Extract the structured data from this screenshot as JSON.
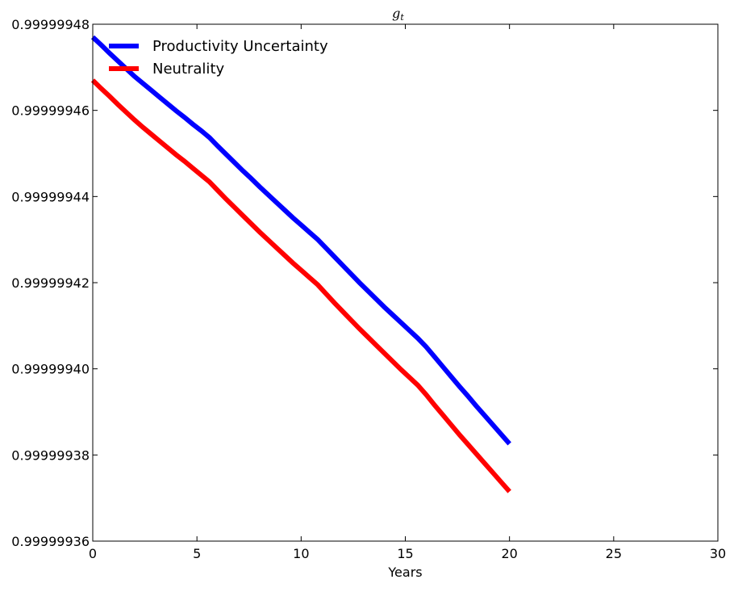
{
  "chart_data": {
    "type": "line",
    "title": "g_t",
    "title_main": "g",
    "title_sub": "t",
    "xlabel": "Years",
    "ylabel": "",
    "xlim": [
      0,
      30
    ],
    "ylim": [
      0.99999936,
      0.99999948
    ],
    "x_ticks": [
      0,
      5,
      10,
      15,
      20,
      25,
      30
    ],
    "x_tick_labels": [
      "0",
      "5",
      "10",
      "15",
      "20",
      "25",
      "30"
    ],
    "y_ticks": [
      0.99999936,
      0.99999938,
      0.9999994,
      0.99999942,
      0.99999944,
      0.99999946,
      0.99999948
    ],
    "y_tick_labels": [
      "0.99999936",
      "0.99999938",
      "0.99999940",
      "0.99999942",
      "0.99999944",
      "0.99999946",
      "0.99999948"
    ],
    "grid": false,
    "legend_position": "top-left",
    "series": [
      {
        "name": "Productivity Uncertainty",
        "color": "#0000ff",
        "x": [
          0,
          0.4,
          0.8,
          1.2,
          1.6,
          2.0,
          2.4,
          2.8,
          3.2,
          3.6,
          4.0,
          4.4,
          4.8,
          5.2,
          5.6,
          6.0,
          6.4,
          6.8,
          7.2,
          7.6,
          8.0,
          8.4,
          8.8,
          9.2,
          9.6,
          10.0,
          10.4,
          10.8,
          11.2,
          11.6,
          12.0,
          12.4,
          12.8,
          13.2,
          13.6,
          14.0,
          14.4,
          14.8,
          15.2,
          15.6,
          16.0,
          16.4,
          16.8,
          17.2,
          17.6,
          18.0,
          18.4,
          18.8,
          19.2,
          19.6,
          20.0
        ],
        "y": [
          0.999999477,
          0.9999994752,
          0.9999994733,
          0.9999994715,
          0.9999994697,
          0.9999994679,
          0.9999994663,
          0.9999994647,
          0.9999994631,
          0.9999994615,
          0.9999994599,
          0.9999994584,
          0.9999994568,
          0.9999994553,
          0.9999994537,
          0.9999994517,
          0.9999994498,
          0.9999994479,
          0.999999446,
          0.9999994442,
          0.9999994423,
          0.9999994405,
          0.9999994387,
          0.9999994369,
          0.9999994351,
          0.9999994334,
          0.9999994317,
          0.99999943,
          0.999999428,
          0.999999426,
          0.999999424,
          0.999999422,
          0.99999942,
          0.9999994181,
          0.9999994162,
          0.9999994143,
          0.9999994125,
          0.9999994107,
          0.9999994089,
          0.9999994071,
          0.9999994051,
          0.9999994028,
          0.9999994005,
          0.9999993982,
          0.9999993959,
          0.9999993937,
          0.9999993914,
          0.9999993892,
          0.999999387,
          0.9999993848,
          0.9999993826
        ]
      },
      {
        "name": "Neutrality",
        "color": "#ff0000",
        "x": [
          0,
          0.4,
          0.8,
          1.2,
          1.6,
          2.0,
          2.4,
          2.8,
          3.2,
          3.6,
          4.0,
          4.4,
          4.8,
          5.2,
          5.6,
          6.0,
          6.4,
          6.8,
          7.2,
          7.6,
          8.0,
          8.4,
          8.8,
          9.2,
          9.6,
          10.0,
          10.4,
          10.8,
          11.2,
          11.6,
          12.0,
          12.4,
          12.8,
          13.2,
          13.6,
          14.0,
          14.4,
          14.8,
          15.2,
          15.6,
          16.0,
          16.4,
          16.8,
          17.2,
          17.6,
          18.0,
          18.4,
          18.8,
          19.2,
          19.6,
          20.0
        ],
        "y": [
          0.999999467,
          0.9999994651,
          0.9999994633,
          0.9999994614,
          0.9999994596,
          0.9999994578,
          0.9999994561,
          0.9999994545,
          0.9999994529,
          0.9999994513,
          0.9999994497,
          0.9999994482,
          0.9999994466,
          0.999999445,
          0.9999994434,
          0.9999994414,
          0.9999994394,
          0.9999994375,
          0.9999994356,
          0.9999994337,
          0.9999994318,
          0.99999943,
          0.9999994282,
          0.9999994264,
          0.9999994246,
          0.9999994229,
          0.9999994212,
          0.9999994195,
          0.9999994174,
          0.9999994153,
          0.9999994133,
          0.9999994113,
          0.9999994093,
          0.9999994074,
          0.9999994055,
          0.9999994036,
          0.9999994017,
          0.9999993998,
          0.999999398,
          0.9999993962,
          0.999999394,
          0.9999993916,
          0.9999993893,
          0.999999387,
          0.9999993847,
          0.9999993825,
          0.9999993803,
          0.9999993781,
          0.9999993759,
          0.9999993737,
          0.9999993715
        ]
      }
    ]
  }
}
